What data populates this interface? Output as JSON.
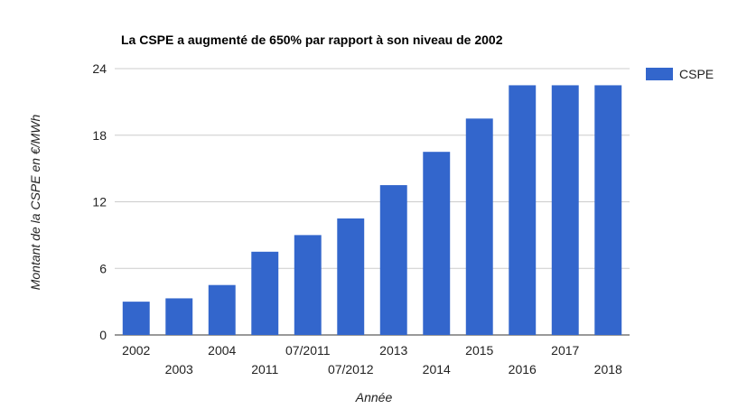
{
  "chart_data": {
    "type": "bar",
    "title": "La CSPE a augmenté de 650% par rapport à son niveau de 2002",
    "xlabel": "Année",
    "ylabel": "Montant de la CSPE en €/MWh",
    "categories": [
      "2002",
      "2003",
      "2004",
      "2011",
      "07/2011",
      "07/2012",
      "2013",
      "2014",
      "2015",
      "2016",
      "2017",
      "2018"
    ],
    "series": [
      {
        "name": "CSPE",
        "color": "#3366cc",
        "values": [
          3.0,
          3.3,
          4.5,
          7.5,
          9.0,
          10.5,
          13.5,
          16.5,
          19.5,
          22.5,
          22.5,
          22.5
        ]
      }
    ],
    "ylim": [
      0,
      24
    ],
    "yticks": [
      "0",
      "6",
      "12",
      "18",
      "24"
    ],
    "grid": true,
    "legend_position": "right"
  }
}
